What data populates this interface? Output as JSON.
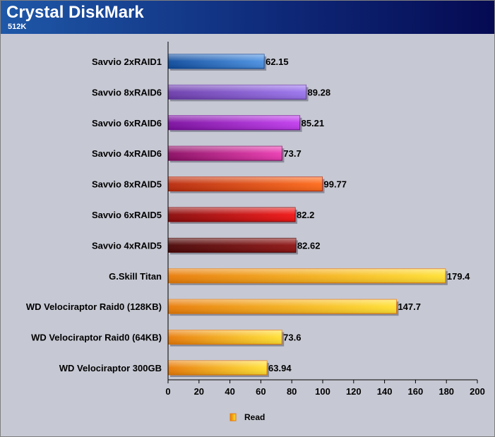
{
  "chart_data": {
    "type": "bar",
    "orientation": "horizontal",
    "title": "Crystal DiskMark",
    "subtitle": "512K",
    "categories": [
      "Savvio 2xRAID1",
      "Savvio 8xRAID6",
      "Savvio 6xRAID6",
      "Savvio 4xRAID6",
      "Savvio 8xRAID5",
      "Savvio 6xRAID5",
      "Savvio 4xRAID5",
      "G.Skill Titan",
      "WD Velociraptor Raid0 (128KB)",
      "WD Velociraptor Raid0 (64KB)",
      "WD Velociraptor 300GB"
    ],
    "series": [
      {
        "name": "Read",
        "values": [
          62.15,
          89.28,
          85.21,
          73.7,
          99.77,
          82.2,
          82.62,
          179.4,
          147.7,
          73.6,
          63.94
        ],
        "value_labels": [
          "62.15",
          "89.28",
          "85.21",
          "73.7",
          "99.77",
          "82.2",
          "82.62",
          "179.4",
          "147.7",
          "73.6",
          "63.94"
        ]
      }
    ],
    "bar_colors": [
      [
        "#0c4a9c",
        "#4a90e2"
      ],
      [
        "#6a3aaa",
        "#9a74ee"
      ],
      [
        "#7a0c9e",
        "#c23cef"
      ],
      [
        "#8a0a62",
        "#ec3ab2"
      ],
      [
        "#b8280a",
        "#ff6a18"
      ],
      [
        "#8a0808",
        "#f21212"
      ],
      [
        "#4a0404",
        "#8e1212"
      ],
      [
        "#e87a05",
        "#ffe030"
      ],
      [
        "#e87a05",
        "#ffe030"
      ],
      [
        "#e87a05",
        "#ffe030"
      ],
      [
        "#e87a05",
        "#ffe030"
      ]
    ],
    "xlim": [
      0,
      200
    ],
    "xticks": [
      0,
      20,
      40,
      60,
      80,
      100,
      120,
      140,
      160,
      180,
      200
    ],
    "grid": false,
    "legend_position": "bottom-center",
    "background_color": "#c6c8d3"
  }
}
